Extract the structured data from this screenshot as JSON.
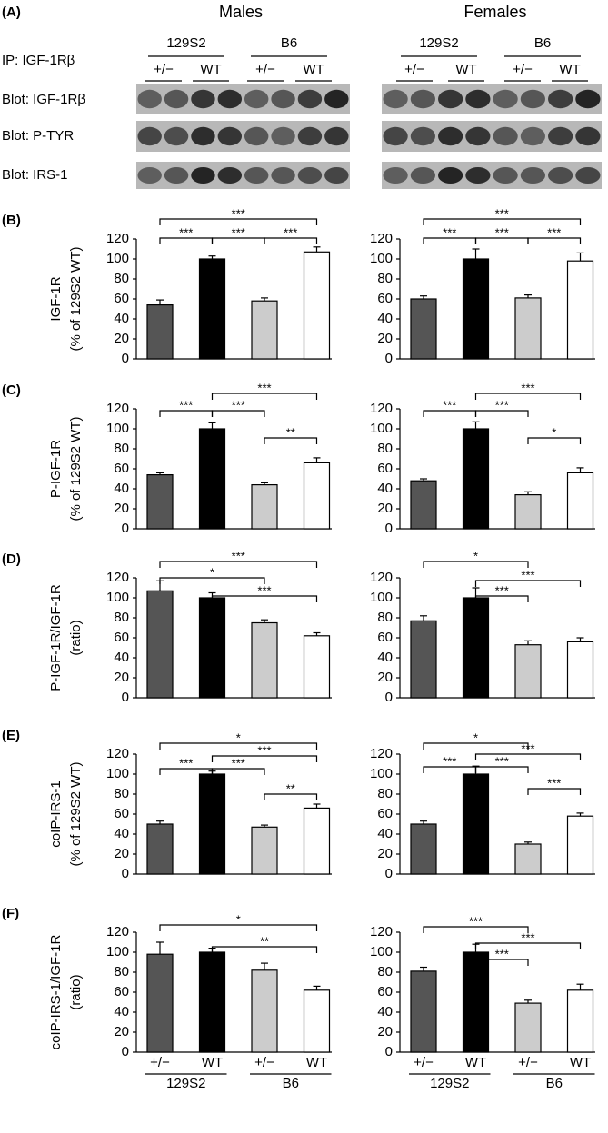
{
  "blot": {
    "panel": "(A)",
    "ip": "IP: IGF-1Rβ",
    "rows": [
      "Blot: IGF-1Rβ",
      "Blot: P-TYR",
      "Blot: IRS-1"
    ],
    "columns": [
      {
        "title": "Males",
        "strains": [
          {
            "name": "129S2",
            "lanes": [
              "+/−",
              "WT"
            ]
          },
          {
            "name": "B6",
            "lanes": [
              "+/−",
              "WT"
            ]
          }
        ]
      },
      {
        "title": "Females",
        "strains": [
          {
            "name": "129S2",
            "lanes": [
              "+/−",
              "WT"
            ]
          },
          {
            "name": "B6",
            "lanes": [
              "+/−",
              "WT"
            ]
          }
        ]
      }
    ]
  },
  "chart_data": [
    {
      "type": "bar",
      "panel": "(B)",
      "ylabel": [
        "IGF-1R",
        "(% of 129S2 WT)"
      ],
      "categories": [
        null,
        null,
        null,
        null
      ],
      "values": [
        54,
        100,
        58,
        107
      ],
      "errors": [
        5,
        3,
        3,
        5
      ],
      "colors": [
        "#555555",
        "#000000",
        "#cccccc",
        "#ffffff"
      ],
      "ylim": [
        0,
        120
      ],
      "yticks": [
        0,
        20,
        40,
        60,
        80,
        100,
        120
      ],
      "annotations": [
        "***",
        "***",
        "***",
        "***"
      ]
    },
    {
      "type": "bar",
      "categories": [
        null,
        null,
        null,
        null
      ],
      "values": [
        60,
        100,
        61,
        98
      ],
      "errors": [
        3,
        10,
        3,
        8
      ],
      "colors": [
        "#555555",
        "#000000",
        "#cccccc",
        "#ffffff"
      ],
      "ylim": [
        0,
        120
      ],
      "yticks": [
        0,
        20,
        40,
        60,
        80,
        100,
        120
      ],
      "annotations": [
        "***",
        "***",
        "***",
        "***"
      ]
    },
    {
      "type": "bar",
      "panel": "(C)",
      "ylabel": [
        "P-IGF-1R",
        "(% of 129S2 WT)"
      ],
      "categories": [
        null,
        null,
        null,
        null
      ],
      "values": [
        54,
        100,
        44,
        66
      ],
      "errors": [
        2,
        6,
        2,
        5
      ],
      "colors": [
        "#555555",
        "#000000",
        "#cccccc",
        "#ffffff"
      ],
      "ylim": [
        0,
        120
      ],
      "yticks": [
        0,
        20,
        40,
        60,
        80,
        100,
        120
      ],
      "annotations": [
        "***",
        "***",
        "***",
        "**"
      ]
    },
    {
      "type": "bar",
      "categories": [
        null,
        null,
        null,
        null
      ],
      "values": [
        48,
        100,
        34,
        56
      ],
      "errors": [
        2,
        7,
        3,
        5
      ],
      "colors": [
        "#555555",
        "#000000",
        "#cccccc",
        "#ffffff"
      ],
      "ylim": [
        0,
        120
      ],
      "yticks": [
        0,
        20,
        40,
        60,
        80,
        100,
        120
      ],
      "annotations": [
        "***",
        "***",
        "***",
        "*"
      ]
    },
    {
      "type": "bar",
      "panel": "(D)",
      "ylabel": [
        "P-IGF-1R/IGF-1R",
        "(ratio)"
      ],
      "categories": [
        null,
        null,
        null,
        null
      ],
      "values": [
        107,
        100,
        75,
        62
      ],
      "errors": [
        10,
        5,
        3,
        3
      ],
      "colors": [
        "#555555",
        "#000000",
        "#cccccc",
        "#ffffff"
      ],
      "ylim": [
        0,
        120
      ],
      "yticks": [
        0,
        20,
        40,
        60,
        80,
        100,
        120
      ],
      "annotations": [
        "***",
        "*",
        "***"
      ]
    },
    {
      "type": "bar",
      "categories": [
        null,
        null,
        null,
        null
      ],
      "values": [
        77,
        100,
        53,
        56
      ],
      "errors": [
        5,
        10,
        4,
        4
      ],
      "colors": [
        "#555555",
        "#000000",
        "#cccccc",
        "#ffffff"
      ],
      "ylim": [
        0,
        120
      ],
      "yticks": [
        0,
        20,
        40,
        60,
        80,
        100,
        120
      ],
      "annotations": [
        "*",
        "***",
        "***"
      ]
    },
    {
      "type": "bar",
      "panel": "(E)",
      "ylabel": [
        "coIP-IRS-1",
        "(% of 129S2 WT)"
      ],
      "categories": [
        null,
        null,
        null,
        null
      ],
      "values": [
        50,
        100,
        47,
        66
      ],
      "errors": [
        3,
        3,
        2,
        4
      ],
      "colors": [
        "#555555",
        "#000000",
        "#cccccc",
        "#ffffff"
      ],
      "ylim": [
        0,
        120
      ],
      "yticks": [
        0,
        20,
        40,
        60,
        80,
        100,
        120
      ],
      "annotations": [
        "*",
        "***",
        "***",
        "***",
        "**"
      ]
    },
    {
      "type": "bar",
      "categories": [
        null,
        null,
        null,
        null
      ],
      "values": [
        50,
        100,
        30,
        58
      ],
      "errors": [
        3,
        8,
        2,
        3
      ],
      "colors": [
        "#555555",
        "#000000",
        "#cccccc",
        "#ffffff"
      ],
      "ylim": [
        0,
        120
      ],
      "yticks": [
        0,
        20,
        40,
        60,
        80,
        100,
        120
      ],
      "annotations": [
        "*",
        "***",
        "***",
        "***",
        "***"
      ]
    },
    {
      "type": "bar",
      "panel": "(F)",
      "ylabel": [
        "coIP-IRS-1/IGF-1R",
        "(ratio)"
      ],
      "categories": [
        "+/−",
        "WT",
        "+/−",
        "WT"
      ],
      "groups": [
        "129S2",
        "B6"
      ],
      "values": [
        98,
        100,
        82,
        62
      ],
      "errors": [
        12,
        4,
        7,
        4
      ],
      "colors": [
        "#555555",
        "#000000",
        "#cccccc",
        "#ffffff"
      ],
      "ylim": [
        0,
        120
      ],
      "yticks": [
        0,
        20,
        40,
        60,
        80,
        100,
        120
      ],
      "annotations": [
        "*",
        "**"
      ]
    },
    {
      "type": "bar",
      "categories": [
        "+/−",
        "WT",
        "+/−",
        "WT"
      ],
      "groups": [
        "129S2",
        "B6"
      ],
      "values": [
        81,
        100,
        49,
        62
      ],
      "errors": [
        4,
        8,
        3,
        6
      ],
      "colors": [
        "#555555",
        "#000000",
        "#cccccc",
        "#ffffff"
      ],
      "ylim": [
        0,
        120
      ],
      "yticks": [
        0,
        20,
        40,
        60,
        80,
        100,
        120
      ],
      "annotations": [
        "***",
        "***",
        "***"
      ]
    }
  ]
}
